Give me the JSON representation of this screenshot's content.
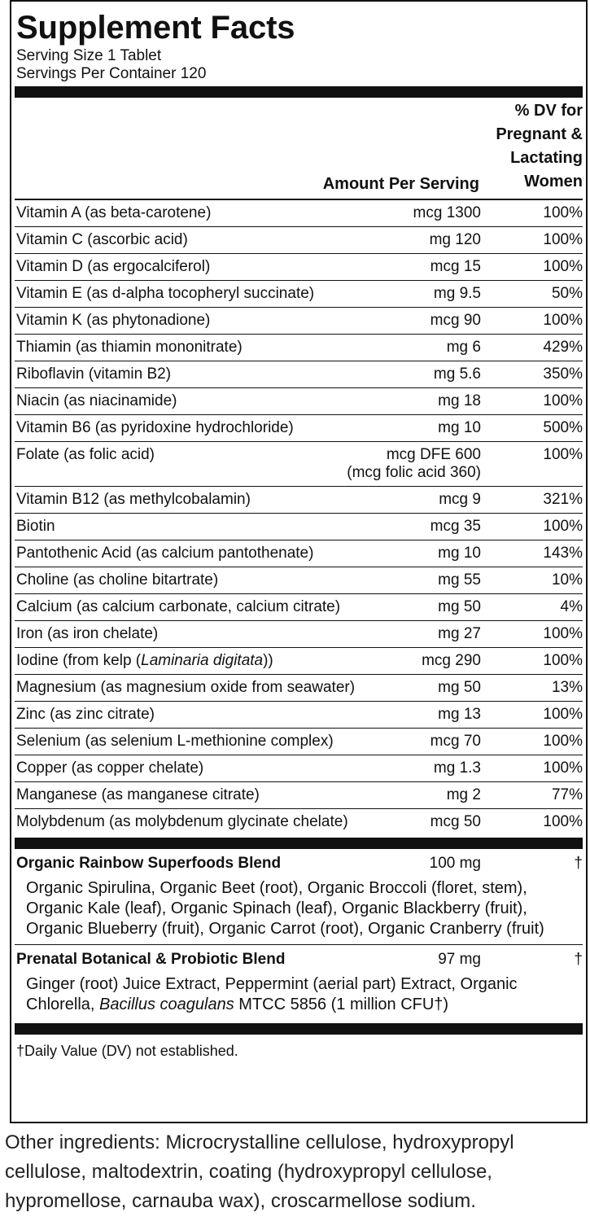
{
  "title": "Supplement Facts",
  "serving_size": "Serving Size 1 Tablet",
  "servings_per_container": "Servings Per Container 120",
  "header": {
    "amount": "Amount Per Serving",
    "dv": "% DV for Pregnant & Lactating Women"
  },
  "rows": [
    {
      "name": "Vitamin A (as beta-carotene)",
      "amount": "1300 mcg",
      "dv": "100%"
    },
    {
      "name": "Vitamin C (ascorbic acid)",
      "amount": "120 mg",
      "dv": "100%"
    },
    {
      "name": "Vitamin D (as ergocalciferol)",
      "amount": "15 mcg",
      "dv": "100%"
    },
    {
      "name": "Vitamin E (as d-alpha tocopheryl succinate)",
      "amount": "9.5 mg",
      "dv": "50%"
    },
    {
      "name": "Vitamin K (as phytonadione)",
      "amount": "90 mcg",
      "dv": "100%"
    },
    {
      "name": "Thiamin (as thiamin mononitrate)",
      "amount": "6 mg",
      "dv": "429%"
    },
    {
      "name": "Riboflavin (vitamin B2)",
      "amount": "5.6 mg",
      "dv": "350%"
    },
    {
      "name": "Niacin (as niacinamide)",
      "amount": "18 mg",
      "dv": "100%"
    },
    {
      "name": "Vitamin B6 (as pyridoxine hydrochloride)",
      "amount": "10 mg",
      "dv": "500%"
    },
    {
      "name": "Folate (as folic acid)",
      "amount": "600 mcg DFE",
      "amount_note": "(360 mcg folic acid)",
      "dv": "100%"
    },
    {
      "name": "Vitamin B12 (as methylcobalamin)",
      "amount": "9 mcg",
      "dv": "321%"
    },
    {
      "name": "Biotin",
      "amount": "35 mcg",
      "dv": "100%"
    },
    {
      "name": "Pantothenic Acid (as calcium pantothenate)",
      "amount": "10 mg",
      "dv": "143%"
    },
    {
      "name": "Choline (as choline bitartrate)",
      "amount": "55 mg",
      "dv": "10%"
    },
    {
      "name": "Calcium (as calcium carbonate, calcium citrate)",
      "amount": "50 mg",
      "dv": "4%"
    },
    {
      "name": "Iron (as iron chelate)",
      "amount": "27 mg",
      "dv": "100%"
    },
    {
      "name": [
        "Iodine (from kelp (",
        "Laminaria digitata",
        "))"
      ],
      "amount": "290 mcg",
      "dv": "100%"
    },
    {
      "name": "Magnesium (as magnesium oxide from seawater)",
      "amount": "50 mg",
      "dv": "13%"
    },
    {
      "name": "Zinc (as zinc citrate)",
      "amount": "13 mg",
      "dv": "100%"
    },
    {
      "name": "Selenium (as selenium L-methionine complex)",
      "amount": "70 mcg",
      "dv": "100%"
    },
    {
      "name": "Copper (as copper chelate)",
      "amount": "1.3 mg",
      "dv": "100%"
    },
    {
      "name": "Manganese (as manganese citrate)",
      "amount": "2 mg",
      "dv": "77%"
    },
    {
      "name": "Molybdenum (as molybdenum glycinate chelate)",
      "amount": "50 mcg",
      "dv": "100%"
    }
  ],
  "blends": [
    {
      "name": "Organic Rainbow Superfoods Blend",
      "amount": "100 mg",
      "dv": "†",
      "ingredients": [
        "Organic Spirulina, Organic Beet (root), Organic Broccoli (floret, stem), Organic Kale (leaf), Organic Spinach (leaf), Organic Blackberry (fruit), Organic Blueberry (fruit), Organic Carrot (root), Organic Cranberry (fruit)"
      ]
    },
    {
      "name": "Prenatal Botanical & Probiotic Blend",
      "amount": "97 mg",
      "dv": "†",
      "ingredients": [
        "Ginger (root) Juice Extract, Peppermint (aerial part) Extract, Organic Chlorella, ",
        "Bacillus coagulans",
        " MTCC 5856 (1 million CFU†)"
      ]
    }
  ],
  "footnote": "†Daily Value (DV) not established.",
  "other_ingredients": "Other ingredients: Microcrystalline cellulose, hydroxypropyl cellulose, maltodextrin, coating (hydroxypropyl cellulose, hypromellose, carnauba wax), croscarmellose sodium."
}
